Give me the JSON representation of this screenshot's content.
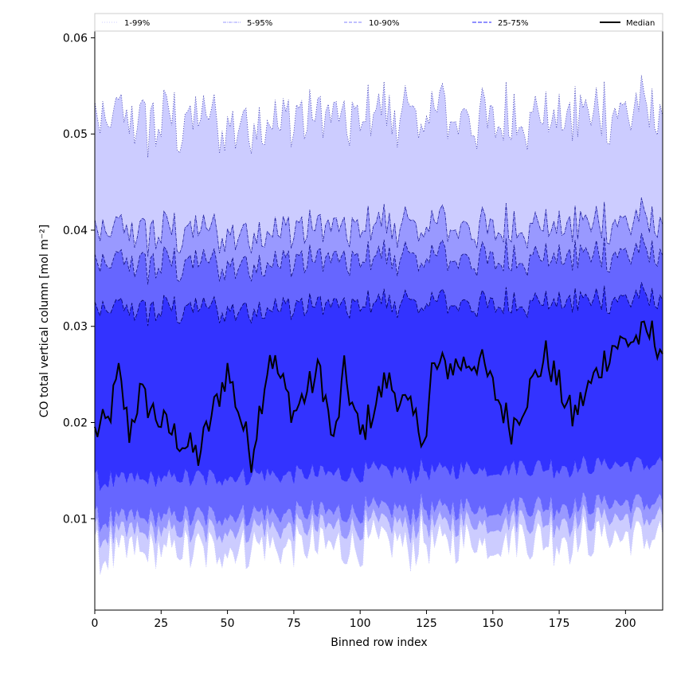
{
  "chart_data": {
    "type": "area",
    "xlabel": "Binned row index",
    "ylabel": "CO total vertical column [mol m⁻²]",
    "xlim": [
      0,
      214
    ],
    "ylim": [
      0.0005,
      0.0607
    ],
    "x_ticks": [
      0,
      25,
      50,
      75,
      100,
      125,
      150,
      175,
      200
    ],
    "x_tick_labels": [
      "0",
      "25",
      "50",
      "75",
      "100",
      "125",
      "150",
      "175",
      "200"
    ],
    "y_ticks": [
      0.01,
      0.02,
      0.03,
      0.04,
      0.05,
      0.06
    ],
    "y_tick_labels": [
      "0.01",
      "0.02",
      "0.03",
      "0.04",
      "0.05",
      "0.06"
    ],
    "grid": false,
    "legend_position": "top",
    "n_points": 215,
    "bands": [
      {
        "name": "1-99%",
        "color": "#ccccff",
        "line_style": "dotted",
        "lower_mean": 0.0065,
        "upper_mean": 0.051
      },
      {
        "name": "5-95%",
        "color": "#9999ff",
        "line_style": "dashdot",
        "lower_mean": 0.0085,
        "upper_mean": 0.0395
      },
      {
        "name": "10-90%",
        "color": "#6666ff",
        "line_style": "dashed",
        "lower_mean": 0.01,
        "upper_mean": 0.0362
      },
      {
        "name": "25-75%",
        "color": "#3333ff",
        "line_style": "dashed",
        "lower_mean": 0.014,
        "upper_mean": 0.0315
      }
    ],
    "median": {
      "name": "Median",
      "color": "#000000",
      "key_points": [
        [
          0,
          0.019
        ],
        [
          5,
          0.02
        ],
        [
          9,
          0.025
        ],
        [
          13,
          0.019
        ],
        [
          17,
          0.023
        ],
        [
          25,
          0.02
        ],
        [
          39,
          0.0165
        ],
        [
          50,
          0.0255
        ],
        [
          59,
          0.0165
        ],
        [
          66,
          0.0273
        ],
        [
          75,
          0.021
        ],
        [
          85,
          0.0255
        ],
        [
          90,
          0.0175
        ],
        [
          94,
          0.0252
        ],
        [
          100,
          0.0185
        ],
        [
          110,
          0.0245
        ],
        [
          125,
          0.0185
        ],
        [
          127,
          0.0255
        ],
        [
          145,
          0.0265
        ],
        [
          157,
          0.0195
        ],
        [
          170,
          0.027
        ],
        [
          180,
          0.0205
        ],
        [
          195,
          0.028
        ],
        [
          210,
          0.0292
        ],
        [
          214,
          0.0275
        ]
      ]
    }
  },
  "legend": {
    "items": [
      {
        "label": "1-99%"
      },
      {
        "label": "5-95%"
      },
      {
        "label": "10-90%"
      },
      {
        "label": "25-75%"
      },
      {
        "label": "Median"
      }
    ]
  }
}
